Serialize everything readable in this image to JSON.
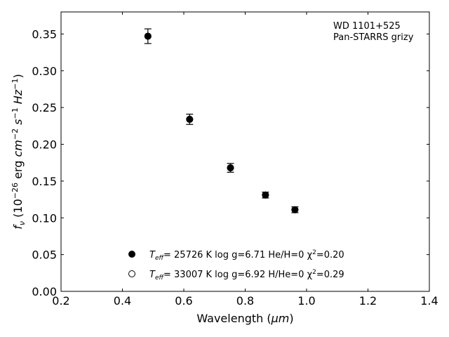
{
  "chart_data": {
    "type": "scatter",
    "xlabel": "Wavelength (μm)",
    "ylabel": "f_ν (10^-26 erg cm^-2 s^-1 Hz^-1)",
    "xlim": [
      0.2,
      1.4
    ],
    "ylim": [
      0.0,
      0.38
    ],
    "xticks": [
      0.2,
      0.4,
      0.6,
      0.8,
      1.0,
      1.2,
      1.4
    ],
    "xtick_labels": [
      "0.2",
      "0.4",
      "0.6",
      "0.8",
      "1.0",
      "1.2",
      "1.4"
    ],
    "yticks": [
      0.0,
      0.05,
      0.1,
      0.15,
      0.2,
      0.25,
      0.3,
      0.35
    ],
    "ytick_labels": [
      "0.00",
      "0.05",
      "0.10",
      "0.15",
      "0.20",
      "0.25",
      "0.30",
      "0.35"
    ],
    "grid": false,
    "annotation": [
      "WD 1101+525",
      "Pan-STARRS grizy"
    ],
    "points": [
      {
        "x": 0.483,
        "y": 0.347,
        "yerr": 0.01
      },
      {
        "x": 0.619,
        "y": 0.234,
        "yerr": 0.007
      },
      {
        "x": 0.752,
        "y": 0.168,
        "yerr": 0.006
      },
      {
        "x": 0.866,
        "y": 0.131,
        "yerr": 0.004
      },
      {
        "x": 0.962,
        "y": 0.111,
        "yerr": 0.004
      }
    ],
    "models": [
      {
        "name": "T_eff= 25726 K  log g=6.71  He/H=0  χ²=0.20",
        "marker": "filled",
        "points": [
          {
            "x": 0.483,
            "y": 0.347
          },
          {
            "x": 0.619,
            "y": 0.234
          },
          {
            "x": 0.752,
            "y": 0.168
          },
          {
            "x": 0.866,
            "y": 0.131
          },
          {
            "x": 0.962,
            "y": 0.111
          }
        ]
      },
      {
        "name": "T_eff= 33007 K  log g=6.92  H/He=0  χ²=0.29",
        "marker": "open",
        "points": [
          {
            "x": 0.483,
            "y": 0.347
          },
          {
            "x": 0.619,
            "y": 0.234
          },
          {
            "x": 0.752,
            "y": 0.168
          },
          {
            "x": 0.866,
            "y": 0.131
          },
          {
            "x": 0.962,
            "y": 0.111
          }
        ]
      }
    ],
    "legend": [
      {
        "marker": "filled",
        "teff": "T",
        "teff_sub": "eff",
        "text": "= 25726 K  log g=6.71  He/H=0  χ",
        "chi_sup": "2",
        "chi_val": "=0.20"
      },
      {
        "marker": "open",
        "teff": "T",
        "teff_sub": "eff",
        "text": "= 33007 K  log g=6.92  H/He=0  χ",
        "chi_sup": "2",
        "chi_val": "=0.29"
      }
    ],
    "legend_position": "lower-left",
    "colors": {
      "marker": "#000000",
      "open_fill": "#ffffff",
      "axes": "#000000"
    }
  }
}
